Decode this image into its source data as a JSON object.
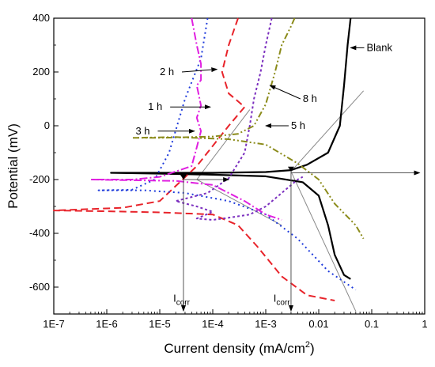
{
  "chart_data": {
    "type": "line",
    "title": "",
    "xlabel": "Current density (mA/cm",
    "xlabel_sup": "2",
    "xlabel_close": ")",
    "ylabel": "Potential (mV)",
    "xscale": "log",
    "xlim": [
      1e-07,
      1
    ],
    "ylim": [
      -700,
      400
    ],
    "x_ticks": [
      {
        "value": 1e-07,
        "label": "1E-7"
      },
      {
        "value": 1e-06,
        "label": "1E-6"
      },
      {
        "value": 1e-05,
        "label": "1E-5"
      },
      {
        "value": 0.0001,
        "label": "1E-4"
      },
      {
        "value": 0.001,
        "label": "1E-3"
      },
      {
        "value": 0.01,
        "label": "0.01"
      },
      {
        "value": 0.1,
        "label": "0.1"
      },
      {
        "value": 1,
        "label": "1"
      }
    ],
    "y_ticks": [
      {
        "value": 400,
        "label": "400"
      },
      {
        "value": 200,
        "label": "200"
      },
      {
        "value": 0,
        "label": "0"
      },
      {
        "value": -200,
        "label": "-200"
      },
      {
        "value": -400,
        "label": "-400"
      },
      {
        "value": -600,
        "label": "-600"
      }
    ],
    "grid": false,
    "series": [
      {
        "name": "Blank",
        "color": "#000000",
        "dash": "solid",
        "width": 2.2,
        "points": [
          [
            0.04,
            400
          ],
          [
            0.035,
            300
          ],
          [
            0.03,
            150
          ],
          [
            0.025,
            0
          ],
          [
            0.015,
            -100
          ],
          [
            0.006,
            -145
          ],
          [
            0.003,
            -165
          ],
          [
            0.001,
            -172
          ],
          [
            0.0001,
            -175
          ],
          [
            1e-05,
            -175
          ],
          [
            1.2e-06,
            -175
          ],
          [
            1e-05,
            -178
          ],
          [
            0.0001,
            -182
          ],
          [
            0.001,
            -188
          ],
          [
            0.005,
            -210
          ],
          [
            0.01,
            -260
          ],
          [
            0.015,
            -370
          ],
          [
            0.02,
            -480
          ],
          [
            0.03,
            -555
          ],
          [
            0.04,
            -570
          ]
        ]
      },
      {
        "name": "1 h",
        "color": "#e8232a",
        "dash": "9 5",
        "width": 2,
        "points": [
          [
            0.0003,
            400
          ],
          [
            0.0002,
            300
          ],
          [
            0.00015,
            200
          ],
          [
            0.0002,
            120
          ],
          [
            0.0004,
            70
          ],
          [
            0.0002,
            0
          ],
          [
            5e-05,
            -150
          ],
          [
            1e-05,
            -280
          ],
          [
            2e-06,
            -305
          ],
          [
            1e-07,
            -315
          ],
          [
            1e-06,
            -318
          ],
          [
            1e-05,
            -322
          ],
          [
            0.0001,
            -330
          ],
          [
            0.0003,
            -370
          ],
          [
            0.0007,
            -450
          ],
          [
            0.002,
            -560
          ],
          [
            0.006,
            -630
          ],
          [
            0.02,
            -650
          ]
        ]
      },
      {
        "name": "2 h",
        "color": "#1f3bdb",
        "dash": "2 4",
        "width": 2,
        "points": [
          [
            8e-05,
            400
          ],
          [
            6e-05,
            250
          ],
          [
            3e-05,
            100
          ],
          [
            1.5e-05,
            -100
          ],
          [
            8e-06,
            -200
          ],
          [
            3e-06,
            -238
          ],
          [
            7e-07,
            -240
          ],
          [
            5e-06,
            -240
          ],
          [
            3e-05,
            -250
          ],
          [
            0.0002,
            -280
          ],
          [
            0.001,
            -330
          ],
          [
            0.004,
            -420
          ],
          [
            0.015,
            -540
          ],
          [
            0.05,
            -610
          ]
        ]
      },
      {
        "name": "3 h",
        "color": "#e020e0",
        "dash": "10 3 2 3",
        "width": 2,
        "points": [
          [
            4e-05,
            400
          ],
          [
            5e-05,
            300
          ],
          [
            6e-05,
            230
          ],
          [
            6e-05,
            170
          ],
          [
            5e-05,
            150
          ],
          [
            6e-05,
            75
          ],
          [
            5e-05,
            30
          ],
          [
            6e-05,
            -20
          ],
          [
            5e-05,
            -80
          ],
          [
            4e-05,
            -150
          ],
          [
            1e-05,
            -190
          ],
          [
            3e-06,
            -200
          ],
          [
            5e-07,
            -200
          ],
          [
            2e-06,
            -202
          ],
          [
            2e-05,
            -205
          ],
          [
            0.0001,
            -220
          ],
          [
            0.0004,
            -280
          ],
          [
            0.001,
            -330
          ],
          [
            0.002,
            -350
          ]
        ]
      },
      {
        "name": "5 h",
        "color": "#7b2fbf",
        "dash": "3 3",
        "width": 2,
        "points": [
          [
            0.0013,
            400
          ],
          [
            0.001,
            300
          ],
          [
            0.0008,
            200
          ],
          [
            0.0006,
            100
          ],
          [
            0.0005,
            0
          ],
          [
            0.0004,
            -100
          ],
          [
            0.0002,
            -195
          ],
          [
            8e-05,
            -250
          ],
          [
            2e-05,
            -280
          ],
          [
            5e-05,
            -300
          ],
          [
            0.0001,
            -320
          ],
          [
            5e-05,
            -345
          ],
          [
            0.0001,
            -350
          ],
          [
            0.0002,
            -342
          ],
          [
            0.0005,
            -330
          ],
          [
            0.001,
            -300
          ],
          [
            0.002,
            -250
          ],
          [
            0.004,
            -200
          ],
          [
            0.005,
            -190
          ]
        ]
      },
      {
        "name": "8 h",
        "color": "#8b8b1a",
        "dash": "8 3 2 3 2 3",
        "width": 2,
        "points": [
          [
            0.0035,
            400
          ],
          [
            0.003,
            370
          ],
          [
            0.002,
            300
          ],
          [
            0.0015,
            200
          ],
          [
            0.001,
            80
          ],
          [
            0.0006,
            0
          ],
          [
            0.0003,
            -30
          ],
          [
            0.0001,
            -40
          ],
          [
            1e-05,
            -45
          ],
          [
            3e-06,
            -45
          ],
          [
            2e-05,
            -42
          ],
          [
            0.0002,
            -50
          ],
          [
            0.001,
            -70
          ],
          [
            0.004,
            -140
          ],
          [
            0.01,
            -200
          ],
          [
            0.02,
            -290
          ],
          [
            0.05,
            -370
          ],
          [
            0.07,
            -420
          ]
        ]
      }
    ],
    "tangents": [
      {
        "from": [
          5e-05,
          -200
        ],
        "to": [
          0.0005,
          60
        ]
      },
      {
        "from": [
          5e-05,
          -200
        ],
        "to": [
          0.002,
          -370
        ]
      },
      {
        "from": [
          0.003,
          -170
        ],
        "to": [
          0.07,
          130
        ]
      },
      {
        "from": [
          0.003,
          -170
        ],
        "to": [
          0.05,
          -690
        ]
      }
    ],
    "icorr_markers": [
      {
        "x": 2.8e-05,
        "y": -200
      },
      {
        "x": 0.003,
        "y": -170
      }
    ],
    "horizontal_arrows": [
      {
        "from": [
          0.003,
          -175
        ],
        "to": [
          0.8,
          -175
        ]
      },
      {
        "from": [
          2.8e-05,
          -200
        ],
        "to": [
          0.0002,
          -200
        ]
      }
    ],
    "annotations": [
      {
        "label": "Blank",
        "text_x": 0.08,
        "text_y": 290,
        "arrow_to": [
          0.04,
          290
        ]
      },
      {
        "label": "2 h",
        "text_x": 1e-05,
        "text_y": 200,
        "arrow_to": [
          0.00012,
          210
        ]
      },
      {
        "label": "1 h",
        "text_x": 6e-06,
        "text_y": 70,
        "arrow_to": [
          9e-05,
          70
        ]
      },
      {
        "label": "8 h",
        "text_x": 0.005,
        "text_y": 100,
        "arrow_to": [
          0.0012,
          150
        ]
      },
      {
        "label": "3 h",
        "text_x": 3.5e-06,
        "text_y": -20,
        "arrow_to": [
          4.5e-05,
          -20
        ]
      },
      {
        "label": "5 h",
        "text_x": 0.003,
        "text_y": 0,
        "arrow_to": [
          0.001,
          0
        ]
      }
    ],
    "icorr_labels": [
      {
        "main": "I",
        "sub": "corr",
        "x": 1.8e-05,
        "y": -655
      },
      {
        "main": "I",
        "sub": "corr",
        "x": 0.0014,
        "y": -655
      }
    ]
  }
}
